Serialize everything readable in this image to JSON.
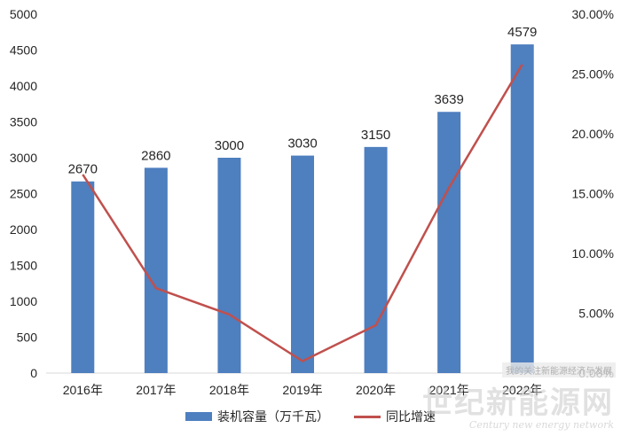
{
  "chart_data": {
    "type": "bar",
    "categories": [
      "2016年",
      "2017年",
      "2018年",
      "2019年",
      "2020年",
      "2021年",
      "2022年"
    ],
    "series": [
      {
        "name": "装机容量（万千瓦）",
        "kind": "bar",
        "axis": "left",
        "values": [
          2670,
          2860,
          3000,
          3030,
          3150,
          3639,
          4579
        ],
        "color": "#4e7fbf"
      },
      {
        "name": "同比增速",
        "kind": "line",
        "axis": "right",
        "values": [
          0.166,
          0.071,
          0.049,
          0.01,
          0.04,
          0.155,
          0.258
        ],
        "color": "#c0504d"
      }
    ],
    "y_left": {
      "lim": [
        0,
        5000
      ],
      "ticks": [
        "0",
        "500",
        "1000",
        "1500",
        "2000",
        "2500",
        "3000",
        "3500",
        "4000",
        "4500",
        "5000"
      ]
    },
    "y_right": {
      "lim": [
        0,
        0.3
      ],
      "ticks": [
        "0.00%",
        "5.00%",
        "10.00%",
        "15.00%",
        "20.00%",
        "25.00%",
        "30.00%"
      ]
    },
    "data_labels": [
      "2670",
      "2860",
      "3000",
      "3030",
      "3150",
      "3639",
      "4579"
    ],
    "grid": false,
    "legend_position": "bottom"
  },
  "legend": {
    "bar_label": "装机容量（万千瓦）",
    "line_label": "同比增速"
  },
  "watermark": {
    "main": "世纪新能源网",
    "sub": "Century new energy network",
    "tag": "我的关注新能源经济与发展"
  }
}
